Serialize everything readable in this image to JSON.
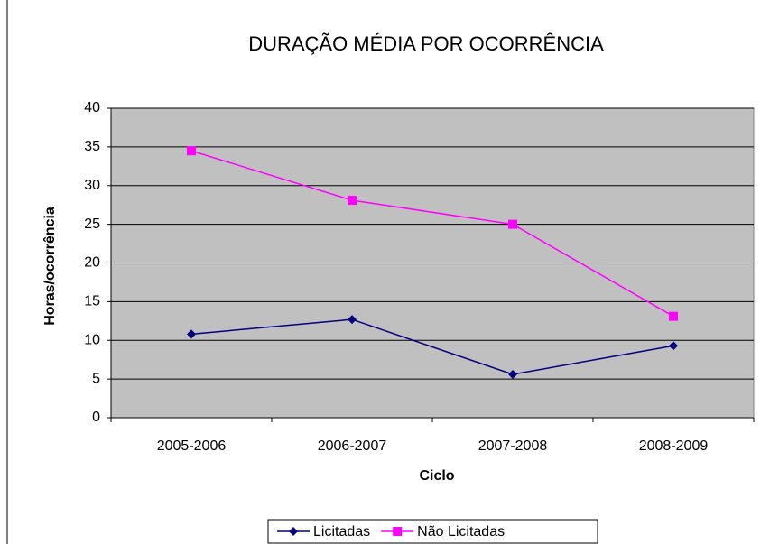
{
  "chart_data": {
    "type": "line",
    "title": "DURAÇÃO MÉDIA POR OCORRÊNCIA",
    "x_label": "Ciclo",
    "y_label": "Horas/ocorrência",
    "categories": [
      "2005-2006",
      "2006-2007",
      "2007-2008",
      "2008-2009"
    ],
    "series": [
      {
        "name": "Licitadas",
        "color": "#000080",
        "marker": "diamond",
        "values": [
          10.8,
          12.7,
          5.6,
          9.3
        ]
      },
      {
        "name": "Não Licitadas",
        "color": "#ff00ff",
        "marker": "square",
        "values": [
          34.5,
          28.1,
          25.0,
          13.1
        ]
      }
    ],
    "ylim": [
      0,
      40
    ],
    "yticks": [
      0,
      5,
      10,
      15,
      20,
      25,
      30,
      35,
      40
    ],
    "grid": true,
    "legend": "bottom"
  }
}
